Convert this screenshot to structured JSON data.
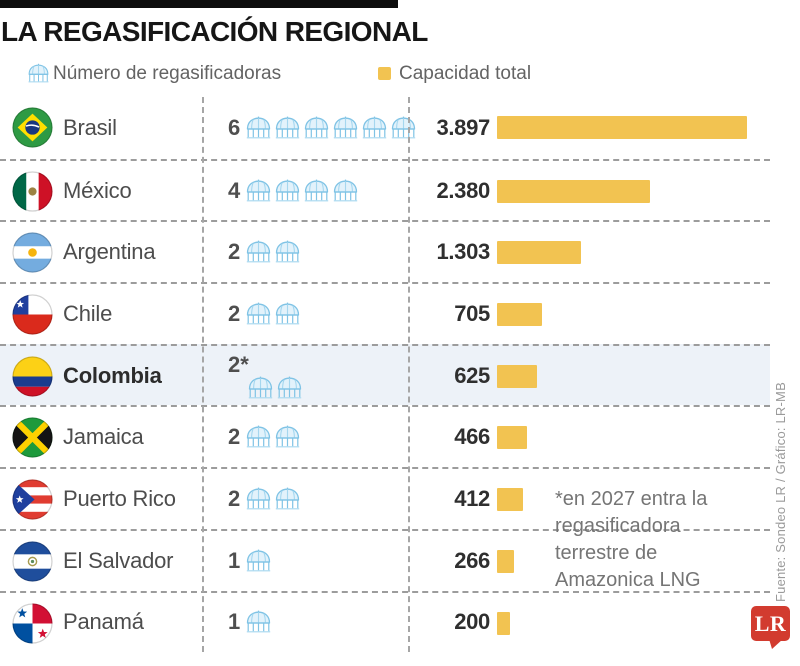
{
  "title": "LA REGASIFICACIÓN REGIONAL",
  "legend": {
    "count_label": "Número de regasificadoras",
    "capacity_label": "Capacidad total"
  },
  "colors": {
    "bar_yellow": "#F2C351",
    "icon_blue": "#7FC3E5",
    "highlight_row": "#EDF2F8",
    "logo_red": "#D23B2F"
  },
  "rows": [
    {
      "country": "Brasil",
      "flag": "brasil",
      "count_label": "6",
      "count": 6,
      "capacity_label": "3.897",
      "capacity": 3897,
      "highlight": false,
      "icons_below": false
    },
    {
      "country": "México",
      "flag": "mexico",
      "count_label": "4",
      "count": 4,
      "capacity_label": "2.380",
      "capacity": 2380,
      "highlight": false,
      "icons_below": false
    },
    {
      "country": "Argentina",
      "flag": "argentina",
      "count_label": "2",
      "count": 2,
      "capacity_label": "1.303",
      "capacity": 1303,
      "highlight": false,
      "icons_below": false
    },
    {
      "country": "Chile",
      "flag": "chile",
      "count_label": "2",
      "count": 2,
      "capacity_label": "705",
      "capacity": 705,
      "highlight": false,
      "icons_below": false
    },
    {
      "country": "Colombia",
      "flag": "colombia",
      "count_label": "2*",
      "count": 2,
      "capacity_label": "625",
      "capacity": 625,
      "highlight": true,
      "icons_below": true
    },
    {
      "country": "Jamaica",
      "flag": "jamaica",
      "count_label": "2",
      "count": 2,
      "capacity_label": "466",
      "capacity": 466,
      "highlight": false,
      "icons_below": false
    },
    {
      "country": "Puerto Rico",
      "flag": "puertorico",
      "count_label": "2",
      "count": 2,
      "capacity_label": "412",
      "capacity": 412,
      "highlight": false,
      "icons_below": false
    },
    {
      "country": "El Salvador",
      "flag": "elsalvador",
      "count_label": "1",
      "count": 1,
      "capacity_label": "266",
      "capacity": 266,
      "highlight": false,
      "icons_below": false
    },
    {
      "country": "Panamá",
      "flag": "panama",
      "count_label": "1",
      "count": 1,
      "capacity_label": "200",
      "capacity": 200,
      "highlight": false,
      "icons_below": false
    }
  ],
  "annotation": "*en 2027 entra la\nregasificadora\nterrestre de\nAmazonica LNG",
  "source": "Fuente: Sondeo LR / Gráfico: LR-MB",
  "logo_text": "LR",
  "chart_data": {
    "type": "bar",
    "orientation": "horizontal",
    "title": "LA REGASIFICACIÓN REGIONAL",
    "categories": [
      "Brasil",
      "México",
      "Argentina",
      "Chile",
      "Colombia",
      "Jamaica",
      "Puerto Rico",
      "El Salvador",
      "Panamá"
    ],
    "series": [
      {
        "name": "Número de regasificadoras",
        "values": [
          6,
          4,
          2,
          2,
          2,
          2,
          2,
          1,
          1
        ]
      },
      {
        "name": "Capacidad total",
        "values": [
          3897,
          2380,
          1303,
          705,
          625,
          466,
          412,
          266,
          200
        ]
      }
    ],
    "value_labels": [
      "3.897",
      "2.380",
      "1.303",
      "705",
      "625",
      "466",
      "412",
      "266",
      "200"
    ],
    "xlim": [
      0,
      3897
    ],
    "grid": false,
    "legend_position": "top",
    "annotations": [
      "*en 2027 entra la regasificadora terrestre de Amazonica LNG"
    ]
  }
}
